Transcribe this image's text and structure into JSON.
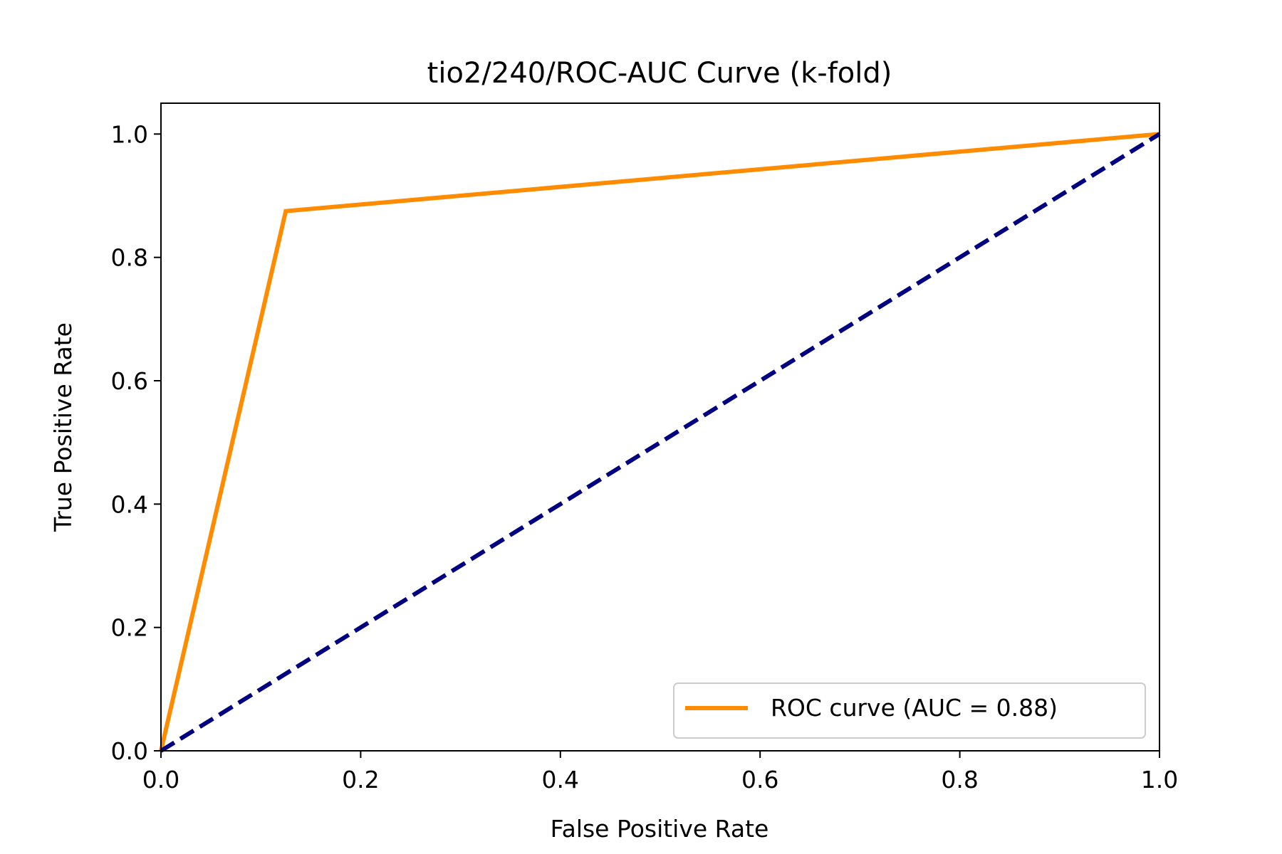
{
  "chart_data": {
    "type": "line",
    "title": "tio2/240/ROC-AUC Curve (k-fold)",
    "xlabel": "False Positive Rate",
    "ylabel": "True Positive Rate",
    "xlim": [
      0.0,
      1.0
    ],
    "ylim": [
      0.0,
      1.05
    ],
    "xticks": [
      "0.0",
      "0.2",
      "0.4",
      "0.6",
      "0.8",
      "1.0"
    ],
    "yticks": [
      "0.0",
      "0.2",
      "0.4",
      "0.6",
      "0.8",
      "1.0"
    ],
    "grid": false,
    "legend_position": "lower-right",
    "series": [
      {
        "name": "ROC curve (AUC = 0.88)",
        "x": [
          0.0,
          0.125,
          1.0
        ],
        "y": [
          0.0,
          0.875,
          1.0
        ],
        "color": "#ff8c00",
        "style": "solid"
      },
      {
        "x": [
          0.0,
          1.0
        ],
        "y": [
          0.0,
          1.0
        ],
        "color": "#000080",
        "style": "dashed"
      }
    ]
  }
}
